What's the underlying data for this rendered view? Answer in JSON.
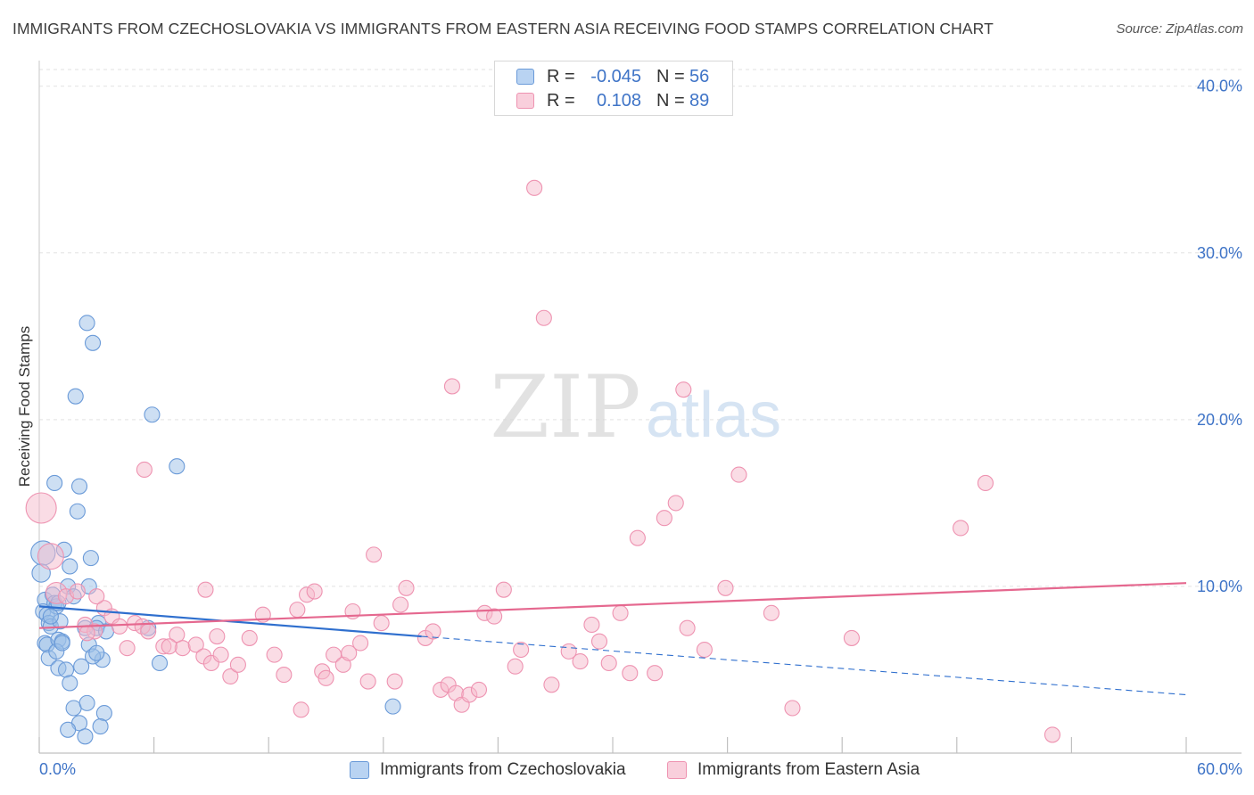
{
  "header": {
    "title": "IMMIGRANTS FROM CZECHOSLOVAKIA VS IMMIGRANTS FROM EASTERN ASIA RECEIVING FOOD STAMPS CORRELATION CHART",
    "source": "Source: ZipAtlas.com"
  },
  "legend": {
    "row1": {
      "r_label": "R =",
      "r_value": "-0.045",
      "n_label": "N =",
      "n_value": "56"
    },
    "row2": {
      "r_label": "R =",
      "r_value": "0.108",
      "n_label": "N =",
      "n_value": "89"
    }
  },
  "watermark": {
    "zip": "ZIP",
    "atlas": "atlas"
  },
  "chart_data": {
    "type": "scatter",
    "title": "IMMIGRANTS FROM CZECHOSLOVAKIA VS IMMIGRANTS FROM EASTERN ASIA RECEIVING FOOD STAMPS CORRELATION CHART",
    "ylabel": "Receiving Food Stamps",
    "xlabel": "",
    "xlim": [
      0,
      60
    ],
    "ylim": [
      0,
      41
    ],
    "x_tick_labels": [
      "0.0%",
      "60.0%"
    ],
    "y_ticks": [
      10,
      20,
      30,
      40
    ],
    "y_tick_labels": [
      "10.0%",
      "20.0%",
      "30.0%",
      "40.0%"
    ],
    "grid": true,
    "legend_position": "top-center",
    "series": [
      {
        "name": "Immigrants from Czechoslovakia",
        "color": "#9bbfe8",
        "edge_color": "#6a9ad8",
        "line_color": "#2f6fce",
        "trend": {
          "x0": 0,
          "y0": 8.8,
          "x1": 20,
          "y1": 7.0,
          "dash_x1": 60,
          "dash_y1": 3.5
        },
        "points": [
          [
            0.2,
            12.0,
            1.6
          ],
          [
            0.1,
            10.8,
            1.2
          ],
          [
            0.3,
            9.2,
            1
          ],
          [
            0.2,
            8.5,
            1
          ],
          [
            0.4,
            8.3,
            1
          ],
          [
            0.5,
            7.8,
            1
          ],
          [
            0.6,
            7.6,
            1
          ],
          [
            0.3,
            6.6,
            1
          ],
          [
            0.4,
            6.5,
            1
          ],
          [
            0.5,
            5.7,
            1
          ],
          [
            0.7,
            9.5,
            1
          ],
          [
            0.8,
            9.0,
            1
          ],
          [
            0.9,
            8.8,
            1
          ],
          [
            1.1,
            7.9,
            1
          ],
          [
            1.0,
            6.8,
            1
          ],
          [
            1.2,
            6.7,
            1
          ],
          [
            0.9,
            6.1,
            1
          ],
          [
            1.0,
            5.1,
            1
          ],
          [
            1.4,
            5.0,
            1
          ],
          [
            1.6,
            4.2,
            1
          ],
          [
            0.8,
            16.2,
            1
          ],
          [
            1.3,
            12.2,
            1
          ],
          [
            1.6,
            11.2,
            1
          ],
          [
            1.5,
            10.0,
            1
          ],
          [
            1.8,
            9.4,
            1
          ],
          [
            2.1,
            16.0,
            1
          ],
          [
            2.0,
            14.5,
            1
          ],
          [
            1.9,
            21.4,
            1
          ],
          [
            2.5,
            25.8,
            1
          ],
          [
            2.8,
            24.6,
            1
          ],
          [
            2.7,
            11.7,
            1
          ],
          [
            2.6,
            10.0,
            1
          ],
          [
            2.4,
            7.5,
            1
          ],
          [
            2.6,
            6.5,
            1
          ],
          [
            2.2,
            5.2,
            1
          ],
          [
            3.1,
            7.8,
            1
          ],
          [
            3.3,
            5.6,
            1
          ],
          [
            3.0,
            7.5,
            1
          ],
          [
            2.8,
            5.8,
            1
          ],
          [
            3.4,
            2.4,
            1
          ],
          [
            1.8,
            2.7,
            1
          ],
          [
            2.1,
            1.8,
            1
          ],
          [
            2.5,
            3.0,
            1
          ],
          [
            1.5,
            1.4,
            1
          ],
          [
            2.4,
            1.0,
            1
          ],
          [
            3.0,
            6.0,
            1
          ],
          [
            5.9,
            20.3,
            1
          ],
          [
            7.2,
            17.2,
            1
          ],
          [
            5.7,
            7.5,
            1
          ],
          [
            6.3,
            5.4,
            1
          ],
          [
            3.5,
            7.3,
            1
          ],
          [
            3.2,
            1.6,
            1
          ],
          [
            18.5,
            2.8,
            1
          ],
          [
            1.2,
            6.6,
            1
          ],
          [
            0.6,
            8.2,
            1
          ],
          [
            1.0,
            9.0,
            1
          ]
        ]
      },
      {
        "name": "Immigrants from Eastern Asia",
        "color": "#f6b9cc",
        "edge_color": "#ee93b1",
        "line_color": "#e5688f",
        "trend": {
          "x0": 0,
          "y0": 7.5,
          "x1": 60,
          "y1": 10.2
        },
        "points": [
          [
            0.1,
            14.7,
            2.0
          ],
          [
            0.6,
            11.8,
            1.7
          ],
          [
            0.9,
            9.6,
            1.4
          ],
          [
            1.4,
            9.4,
            1
          ],
          [
            2.0,
            9.7,
            1
          ],
          [
            2.4,
            7.7,
            1
          ],
          [
            2.9,
            7.3,
            1
          ],
          [
            3.4,
            8.7,
            1
          ],
          [
            3.8,
            8.2,
            1
          ],
          [
            3.0,
            9.4,
            1
          ],
          [
            4.2,
            7.6,
            1
          ],
          [
            4.6,
            6.3,
            1
          ],
          [
            5.0,
            7.8,
            1
          ],
          [
            5.4,
            7.6,
            1
          ],
          [
            5.7,
            7.3,
            1
          ],
          [
            6.5,
            6.4,
            1
          ],
          [
            7.2,
            7.1,
            1
          ],
          [
            7.5,
            6.3,
            1
          ],
          [
            8.2,
            6.5,
            1
          ],
          [
            8.6,
            5.8,
            1
          ],
          [
            9.0,
            5.4,
            1
          ],
          [
            9.5,
            5.9,
            1
          ],
          [
            9.3,
            7.0,
            1
          ],
          [
            10.0,
            4.6,
            1
          ],
          [
            10.4,
            5.3,
            1
          ],
          [
            11.0,
            6.9,
            1
          ],
          [
            11.7,
            8.3,
            1
          ],
          [
            12.3,
            5.9,
            1
          ],
          [
            12.8,
            4.7,
            1
          ],
          [
            13.5,
            8.6,
            1
          ],
          [
            14.0,
            9.5,
            1
          ],
          [
            14.4,
            9.7,
            1
          ],
          [
            14.8,
            4.9,
            1
          ],
          [
            15.0,
            4.5,
            1
          ],
          [
            15.4,
            5.9,
            1
          ],
          [
            15.9,
            5.3,
            1
          ],
          [
            16.4,
            8.5,
            1
          ],
          [
            16.8,
            6.6,
            1
          ],
          [
            17.2,
            4.3,
            1
          ],
          [
            17.5,
            11.9,
            1
          ],
          [
            17.9,
            7.8,
            1
          ],
          [
            18.6,
            4.3,
            1
          ],
          [
            18.9,
            8.9,
            1
          ],
          [
            19.2,
            9.9,
            1
          ],
          [
            20.2,
            6.9,
            1
          ],
          [
            20.6,
            7.3,
            1
          ],
          [
            21.0,
            3.8,
            1
          ],
          [
            21.4,
            4.1,
            1
          ],
          [
            21.8,
            3.6,
            1
          ],
          [
            22.1,
            2.9,
            1
          ],
          [
            22.5,
            3.5,
            1
          ],
          [
            23.0,
            3.8,
            1
          ],
          [
            23.3,
            8.4,
            1
          ],
          [
            23.8,
            8.2,
            1
          ],
          [
            24.3,
            9.8,
            1
          ],
          [
            24.9,
            5.2,
            1
          ],
          [
            25.2,
            6.2,
            1
          ],
          [
            25.9,
            33.9,
            1
          ],
          [
            26.4,
            26.1,
            1
          ],
          [
            26.8,
            4.1,
            1
          ],
          [
            27.7,
            6.1,
            1
          ],
          [
            28.3,
            5.5,
            1
          ],
          [
            28.9,
            7.7,
            1
          ],
          [
            29.3,
            6.7,
            1
          ],
          [
            29.8,
            5.4,
            1
          ],
          [
            30.4,
            8.4,
            1
          ],
          [
            30.9,
            4.8,
            1
          ],
          [
            31.3,
            12.9,
            1
          ],
          [
            32.2,
            4.8,
            1
          ],
          [
            32.7,
            14.1,
            1
          ],
          [
            33.3,
            15.0,
            1
          ],
          [
            33.7,
            21.8,
            1
          ],
          [
            33.9,
            7.5,
            1
          ],
          [
            34.8,
            6.2,
            1
          ],
          [
            35.9,
            9.9,
            1
          ],
          [
            36.6,
            16.7,
            1
          ],
          [
            38.3,
            8.4,
            1
          ],
          [
            39.4,
            2.7,
            1
          ],
          [
            42.5,
            6.9,
            1
          ],
          [
            48.2,
            13.5,
            1
          ],
          [
            49.5,
            16.2,
            1
          ],
          [
            53.0,
            1.1,
            1
          ],
          [
            21.6,
            22.0,
            1
          ],
          [
            5.5,
            17.0,
            1
          ],
          [
            13.7,
            2.6,
            1
          ],
          [
            8.7,
            9.8,
            1
          ],
          [
            2.5,
            7.2,
            1
          ],
          [
            6.8,
            6.4,
            1
          ],
          [
            16.2,
            6.0,
            1
          ]
        ]
      }
    ]
  },
  "axes": {
    "x_min_label": "0.0%",
    "x_max_label": "60.0%",
    "y_tick_labels": [
      "10.0%",
      "20.0%",
      "30.0%",
      "40.0%"
    ],
    "y_title": "Receiving Food Stamps"
  },
  "bottom_legend": {
    "series1": "Immigrants from Czechoslovakia",
    "series2": "Immigrants from Eastern Asia"
  },
  "colors": {
    "blue_fill": "#9bbfe8",
    "blue_edge": "#6a9ad8",
    "pink_fill": "#f6b9cc",
    "pink_edge": "#ee93b1",
    "axis_text_blue": "#3f74c7",
    "grid": "#e0e0e0"
  }
}
